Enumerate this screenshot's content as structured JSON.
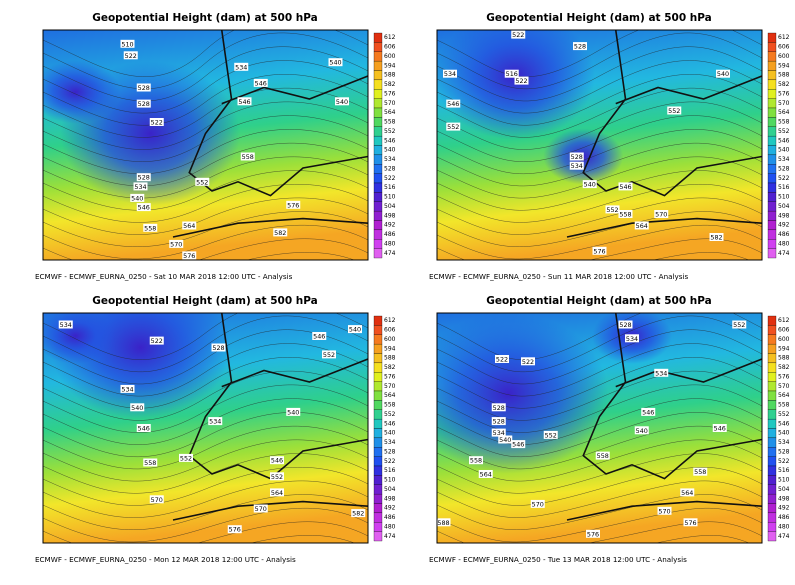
{
  "colorbar_labels": [
    612,
    606,
    600,
    594,
    588,
    582,
    576,
    570,
    564,
    558,
    552,
    546,
    540,
    534,
    528,
    522,
    516,
    510,
    504,
    498,
    492,
    486,
    480,
    474
  ],
  "panels": [
    {
      "title": "Geopotential Height (dam) at 500 hPa",
      "caption": "ECMWF - ECMWF_EURNA_0250 - Sat 10 MAR 2018 12:00 UTC - Analysis",
      "contour_labels": [
        510,
        522,
        528,
        528,
        522,
        528,
        534,
        540,
        546,
        558,
        570,
        576,
        564,
        552,
        558,
        546,
        534,
        540,
        540,
        546,
        582,
        576
      ]
    },
    {
      "title": "Geopotential Height (dam) at 500 hPa",
      "caption": "ECMWF - ECMWF_EURNA_0250 - Sun 11 MAR 2018 12:00 UTC - Analysis",
      "contour_labels": [
        522,
        516,
        522,
        528,
        534,
        546,
        552,
        528,
        534,
        540,
        546,
        552,
        558,
        564,
        570,
        576,
        582,
        540,
        552
      ]
    },
    {
      "title": "Geopotential Height (dam) at 500 hPa",
      "caption": "ECMWF - ECMWF_EURNA_0250 - Mon 12 MAR 2018 12:00 UTC - Analysis",
      "contour_labels": [
        534,
        522,
        528,
        546,
        540,
        552,
        534,
        540,
        546,
        534,
        540,
        552,
        558,
        546,
        552,
        570,
        564,
        570,
        576,
        582
      ]
    },
    {
      "title": "Geopotential Height (dam) at 500 hPa",
      "caption": "ECMWF - ECMWF_EURNA_0250 - Tue 13 MAR 2018 12:00 UTC - Analysis",
      "contour_labels": [
        528,
        534,
        552,
        522,
        522,
        528,
        528,
        534,
        540,
        546,
        558,
        564,
        552,
        558,
        546,
        540,
        534,
        546,
        558,
        564,
        570,
        570,
        576,
        576,
        588
      ]
    }
  ]
}
